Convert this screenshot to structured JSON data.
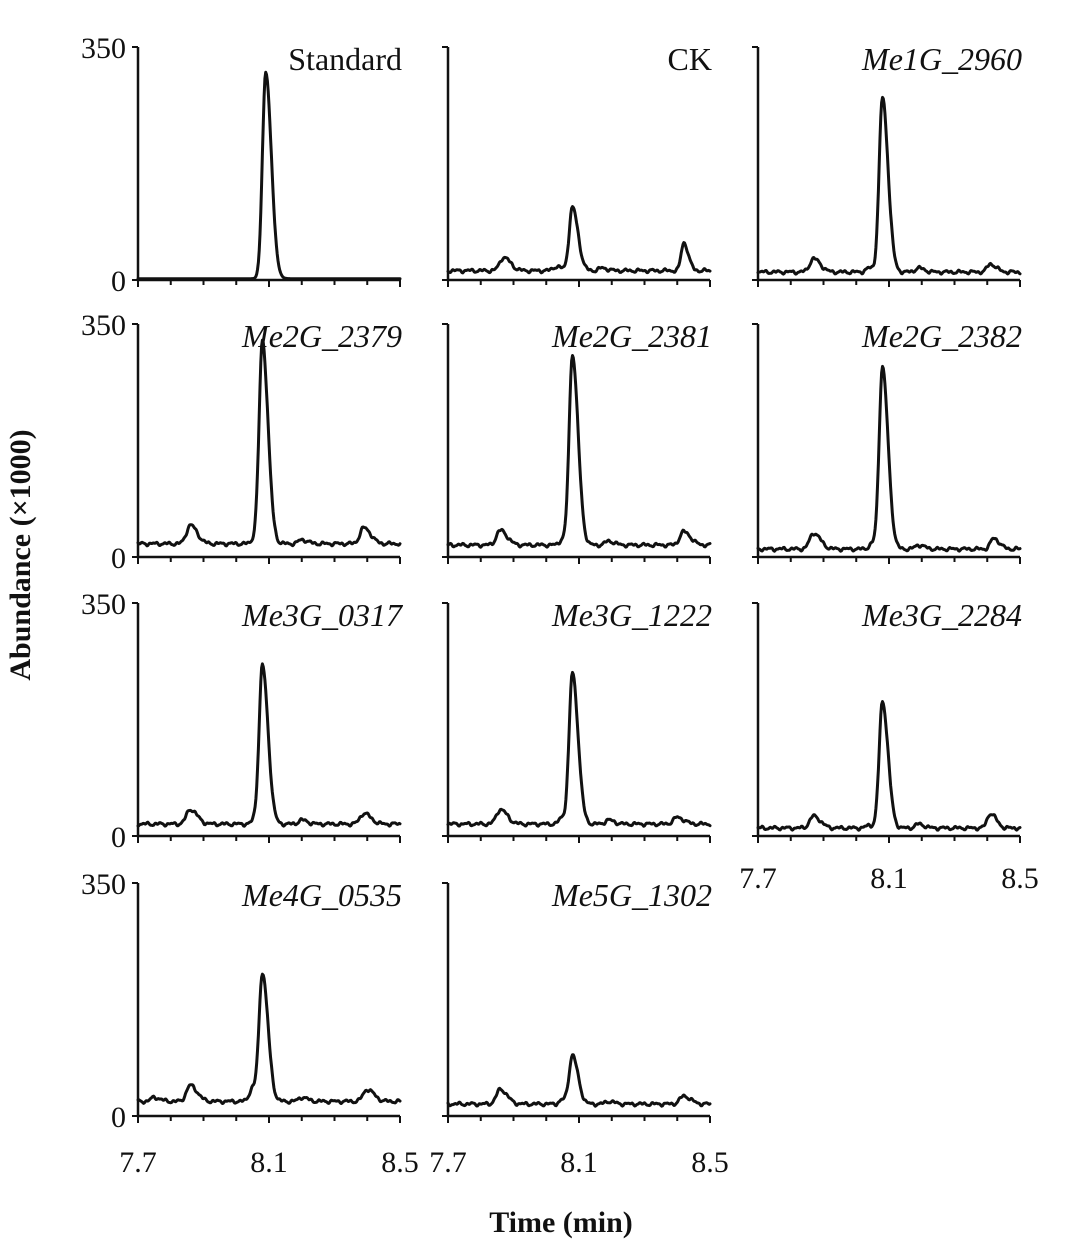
{
  "chart_data": {
    "type": "line",
    "layout": "small-multiples",
    "xlabel": "Time (min)",
    "ylabel": "Abundance (×1000)",
    "xlim": [
      7.7,
      8.5
    ],
    "ylim": [
      0,
      350
    ],
    "x_tick_labels": [
      "7.7",
      "8.1",
      "8.5"
    ],
    "y_tick_labels": [
      "0",
      "350"
    ],
    "panels": [
      {
        "title": "Standard",
        "italic": false,
        "baseline": 2,
        "peaks": [
          [
            8.09,
            310,
            0.01
          ]
        ]
      },
      {
        "title": "CK",
        "italic": false,
        "baseline": 14,
        "peaks": [
          [
            7.87,
            20,
            0.012
          ],
          [
            8.03,
            6,
            0.01
          ],
          [
            8.08,
            95,
            0.01
          ],
          [
            8.17,
            4,
            0.01
          ],
          [
            8.42,
            42,
            0.008
          ]
        ]
      },
      {
        "title": "Me1G_2960",
        "italic": true,
        "baseline": 12,
        "peaks": [
          [
            7.87,
            20,
            0.012
          ],
          [
            8.04,
            6,
            0.01
          ],
          [
            8.08,
            262,
            0.01
          ],
          [
            8.19,
            6,
            0.01
          ],
          [
            8.41,
            12,
            0.01
          ]
        ]
      },
      {
        "title": "Me2G_2379",
        "italic": true,
        "baseline": 20,
        "peaks": [
          [
            7.86,
            28,
            0.012
          ],
          [
            8.06,
            10,
            0.01
          ],
          [
            8.08,
            300,
            0.01
          ],
          [
            8.2,
            6,
            0.01
          ],
          [
            8.39,
            24,
            0.012
          ]
        ]
      },
      {
        "title": "Me2G_2381",
        "italic": true,
        "baseline": 18,
        "peaks": [
          [
            7.86,
            22,
            0.012
          ],
          [
            8.05,
            8,
            0.01
          ],
          [
            8.08,
            285,
            0.01
          ],
          [
            8.19,
            6,
            0.01
          ],
          [
            8.42,
            20,
            0.012
          ]
        ]
      },
      {
        "title": "Me2G_2382",
        "italic": true,
        "baseline": 12,
        "peaks": [
          [
            7.87,
            24,
            0.012
          ],
          [
            8.05,
            8,
            0.01
          ],
          [
            8.08,
            272,
            0.01
          ],
          [
            8.19,
            6,
            0.01
          ],
          [
            8.42,
            16,
            0.01
          ]
        ]
      },
      {
        "title": "Me3G_0317",
        "italic": true,
        "baseline": 18,
        "peaks": [
          [
            7.86,
            22,
            0.012
          ],
          [
            8.06,
            8,
            0.01
          ],
          [
            8.08,
            235,
            0.01
          ],
          [
            8.2,
            6,
            0.01
          ],
          [
            8.39,
            16,
            0.012
          ]
        ]
      },
      {
        "title": "Me3G_1222",
        "italic": true,
        "baseline": 18,
        "peaks": [
          [
            7.86,
            22,
            0.012
          ],
          [
            8.05,
            10,
            0.01
          ],
          [
            8.08,
            225,
            0.01
          ],
          [
            8.19,
            6,
            0.01
          ],
          [
            8.4,
            10,
            0.012
          ]
        ]
      },
      {
        "title": "Me3G_2284",
        "italic": true,
        "baseline": 12,
        "peaks": [
          [
            7.87,
            18,
            0.012
          ],
          [
            8.04,
            4,
            0.01
          ],
          [
            8.08,
            190,
            0.01
          ],
          [
            8.19,
            6,
            0.01
          ],
          [
            8.41,
            22,
            0.01
          ]
        ]
      },
      {
        "title": "Me4G_0535",
        "italic": true,
        "baseline": 22,
        "peaks": [
          [
            7.75,
            6,
            0.01
          ],
          [
            7.86,
            24,
            0.012
          ],
          [
            8.05,
            20,
            0.01
          ],
          [
            8.08,
            190,
            0.01
          ],
          [
            8.2,
            6,
            0.01
          ],
          [
            8.4,
            18,
            0.012
          ]
        ]
      },
      {
        "title": "Me5G_1302",
        "italic": true,
        "baseline": 18,
        "peaks": [
          [
            7.86,
            22,
            0.012
          ],
          [
            8.05,
            6,
            0.01
          ],
          [
            8.08,
            72,
            0.01
          ],
          [
            8.19,
            4,
            0.01
          ],
          [
            8.42,
            12,
            0.012
          ]
        ]
      }
    ]
  }
}
